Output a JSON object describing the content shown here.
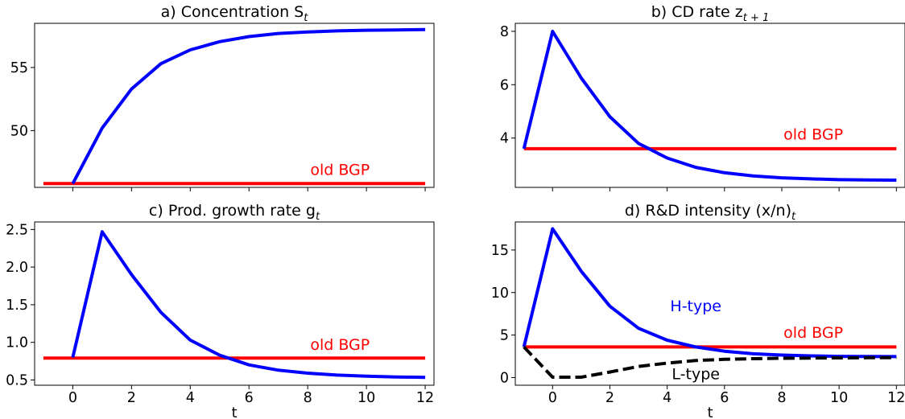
{
  "chart_data": [
    {
      "id": "a",
      "type": "line",
      "title": "a) Concentration S",
      "title_sub": "t",
      "xlabel": "",
      "xlim": [
        -1.3,
        12.3
      ],
      "ylim": [
        45.5,
        58.5
      ],
      "xticks": [
        0,
        2,
        4,
        6,
        8,
        10,
        12
      ],
      "xticks_labeled": false,
      "yticks": [
        50,
        55
      ],
      "ytick_labels": [
        "50",
        "55"
      ],
      "series": [
        {
          "color": "#0000ff",
          "dash": "solid",
          "x": [
            0,
            1,
            2,
            3,
            4,
            5,
            6,
            7,
            8,
            9,
            10,
            11,
            12
          ],
          "y": [
            45.8,
            50.2,
            53.3,
            55.3,
            56.4,
            57.05,
            57.45,
            57.7,
            57.82,
            57.9,
            57.95,
            57.98,
            58.0
          ]
        },
        {
          "color": "#ff0000",
          "dash": "solid",
          "x": [
            -1,
            12
          ],
          "y": [
            45.8,
            45.8
          ]
        }
      ],
      "annotations": [
        {
          "text": "old BGP",
          "color": "#ff0000",
          "x": 9.1,
          "y": 46.5
        }
      ]
    },
    {
      "id": "b",
      "type": "line",
      "title": "b) CD rate z",
      "title_sub": "t + 1",
      "xlabel": "",
      "xlim": [
        -1.3,
        12.3
      ],
      "ylim": [
        2.15,
        8.3
      ],
      "xticks": [
        0,
        2,
        4,
        6,
        8,
        10,
        12
      ],
      "xticks_labeled": false,
      "yticks": [
        4,
        6,
        8
      ],
      "ytick_labels": [
        "4",
        "6",
        "8"
      ],
      "series": [
        {
          "color": "#0000ff",
          "dash": "solid",
          "x": [
            -1,
            0,
            1,
            2,
            3,
            4,
            5,
            6,
            7,
            8,
            9,
            10,
            11,
            12
          ],
          "y": [
            3.6,
            8.0,
            6.25,
            4.8,
            3.8,
            3.25,
            2.9,
            2.7,
            2.58,
            2.51,
            2.47,
            2.44,
            2.43,
            2.42
          ]
        },
        {
          "color": "#ff0000",
          "dash": "solid",
          "x": [
            -1,
            12
          ],
          "y": [
            3.6,
            3.6
          ]
        }
      ],
      "annotations": [
        {
          "text": "old BGP",
          "color": "#ff0000",
          "x": 9.1,
          "y": 3.95
        }
      ]
    },
    {
      "id": "c",
      "type": "line",
      "title": "c) Prod. growth rate g",
      "title_sub": "t",
      "xlabel": "t",
      "xlim": [
        -1.3,
        12.3
      ],
      "ylim": [
        0.43,
        2.6
      ],
      "xticks": [
        0,
        2,
        4,
        6,
        8,
        10,
        12
      ],
      "xticks_labeled": true,
      "yticks": [
        0.5,
        1.0,
        1.5,
        2.0,
        2.5
      ],
      "ytick_labels": [
        "0.5",
        "1.0",
        "1.5",
        "2.0",
        "2.5"
      ],
      "series": [
        {
          "color": "#0000ff",
          "dash": "solid",
          "x": [
            0,
            1,
            2,
            3,
            4,
            5,
            6,
            7,
            8,
            9,
            10,
            11,
            12
          ],
          "y": [
            0.8,
            2.47,
            1.9,
            1.4,
            1.03,
            0.83,
            0.7,
            0.63,
            0.59,
            0.565,
            0.55,
            0.54,
            0.535
          ]
        },
        {
          "color": "#ff0000",
          "dash": "solid",
          "x": [
            -1,
            12
          ],
          "y": [
            0.79,
            0.79
          ]
        }
      ],
      "annotations": [
        {
          "text": "old BGP",
          "color": "#ff0000",
          "x": 9.1,
          "y": 0.9
        }
      ]
    },
    {
      "id": "d",
      "type": "line",
      "title": "d) R&D intensity (x/n)",
      "title_sub": "t",
      "xlabel": "t",
      "xlim": [
        -1.3,
        12.3
      ],
      "ylim": [
        -0.9,
        18.3
      ],
      "xticks": [
        0,
        2,
        4,
        6,
        8,
        10,
        12
      ],
      "xticks_labeled": true,
      "yticks": [
        0,
        5,
        10,
        15
      ],
      "ytick_labels": [
        "0",
        "5",
        "10",
        "15"
      ],
      "series": [
        {
          "name": "H-type",
          "color": "#0000ff",
          "dash": "solid",
          "x": [
            -1,
            0,
            1,
            2,
            3,
            4,
            5,
            6,
            7,
            8,
            9,
            10,
            11,
            12
          ],
          "y": [
            3.6,
            17.5,
            12.5,
            8.4,
            5.8,
            4.4,
            3.6,
            3.1,
            2.8,
            2.65,
            2.55,
            2.5,
            2.48,
            2.47
          ]
        },
        {
          "name": "L-type",
          "color": "#000000",
          "dash": "dashed",
          "x": [
            -1,
            0,
            1,
            2,
            3,
            4,
            5,
            6,
            7,
            8,
            9,
            10,
            11,
            12
          ],
          "y": [
            3.6,
            0.05,
            0.05,
            0.65,
            1.3,
            1.7,
            2.0,
            2.15,
            2.22,
            2.27,
            2.3,
            2.32,
            2.33,
            2.34
          ]
        },
        {
          "color": "#ff0000",
          "dash": "solid",
          "x": [
            -1,
            12
          ],
          "y": [
            3.6,
            3.6
          ]
        }
      ],
      "annotations": [
        {
          "text": "old BGP",
          "color": "#ff0000",
          "x": 9.1,
          "y": 4.7
        },
        {
          "text": "H-type",
          "color": "#0000ff",
          "x": 5.0,
          "y": 7.8
        },
        {
          "text": "L-type",
          "color": "#000000",
          "x": 5.0,
          "y": -0.2
        }
      ]
    }
  ]
}
